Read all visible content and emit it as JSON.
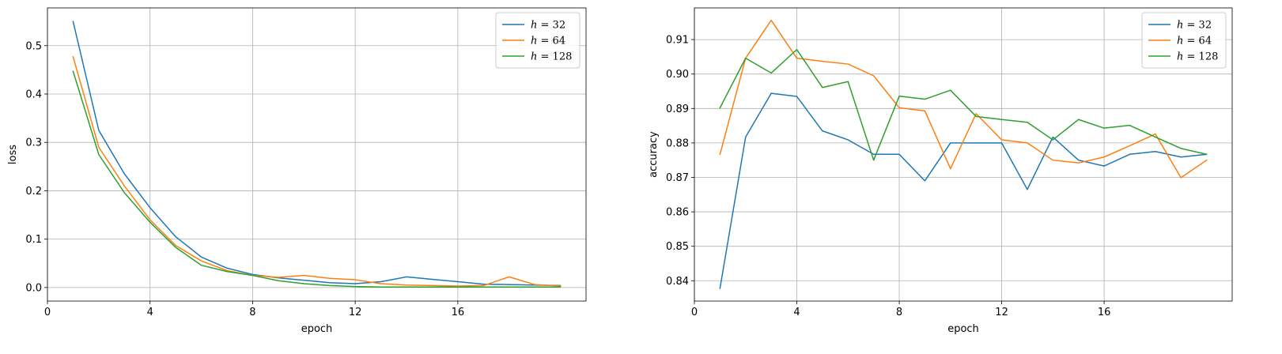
{
  "chart_data": [
    {
      "type": "line",
      "xlabel": "epoch",
      "ylabel": "loss",
      "xlim": [
        0,
        21
      ],
      "ylim": [
        -0.028,
        0.578
      ],
      "xticks": [
        0,
        4,
        8,
        12,
        16
      ],
      "yticks": [
        0.0,
        0.1,
        0.2,
        0.3,
        0.4,
        0.5
      ],
      "ytick_labels": [
        "0.0",
        "0.1",
        "0.2",
        "0.3",
        "0.4",
        "0.5"
      ],
      "grid": true,
      "legend": "top-right",
      "x": [
        1,
        2,
        3,
        4,
        5,
        6,
        7,
        8,
        9,
        10,
        11,
        12,
        13,
        14,
        15,
        16,
        17,
        18,
        19,
        20
      ],
      "series": [
        {
          "var": "h",
          "value": "32",
          "color": "#1f77b4",
          "values": [
            0.55,
            0.325,
            0.235,
            0.165,
            0.105,
            0.063,
            0.04,
            0.027,
            0.02,
            0.015,
            0.01,
            0.008,
            0.012,
            0.022,
            0.017,
            0.012,
            0.007,
            0.006,
            0.005,
            0.004
          ]
        },
        {
          "var": "h",
          "value": "64",
          "color": "#ff7f0e",
          "values": [
            0.477,
            0.29,
            0.21,
            0.14,
            0.087,
            0.055,
            0.035,
            0.025,
            0.021,
            0.025,
            0.019,
            0.016,
            0.008,
            0.005,
            0.004,
            0.003,
            0.004,
            0.022,
            0.006,
            0.003
          ]
        },
        {
          "var": "h",
          "value": "128",
          "color": "#2ca02c",
          "values": [
            0.447,
            0.275,
            0.196,
            0.135,
            0.083,
            0.046,
            0.033,
            0.025,
            0.014,
            0.008,
            0.004,
            0.002,
            0.001,
            0.001,
            0.001,
            0.001,
            0.001,
            0.001,
            0.001,
            0.001
          ]
        }
      ]
    },
    {
      "type": "line",
      "xlabel": "epoch",
      "ylabel": "accuracy",
      "xlim": [
        0,
        21
      ],
      "ylim": [
        0.8341,
        0.9192
      ],
      "xticks": [
        0,
        4,
        8,
        12,
        16
      ],
      "yticks": [
        0.84,
        0.85,
        0.86,
        0.87,
        0.88,
        0.89,
        0.9,
        0.91
      ],
      "ytick_labels": [
        "0.84",
        "0.85",
        "0.86",
        "0.87",
        "0.88",
        "0.89",
        "0.90",
        "0.91"
      ],
      "grid": true,
      "legend": "top-right",
      "x": [
        1,
        2,
        3,
        4,
        5,
        6,
        7,
        8,
        9,
        10,
        11,
        12,
        13,
        14,
        15,
        16,
        17,
        18,
        19,
        20
      ],
      "series": [
        {
          "var": "h",
          "value": "32",
          "color": "#1f77b4",
          "values": [
            0.8378,
            0.8817,
            0.8944,
            0.8935,
            0.8835,
            0.8809,
            0.8767,
            0.8767,
            0.869,
            0.88,
            0.88,
            0.88,
            0.8665,
            0.8817,
            0.875,
            0.8733,
            0.8767,
            0.8775,
            0.8759,
            0.8767
          ]
        },
        {
          "var": "h",
          "value": "64",
          "color": "#ff7f0e",
          "values": [
            0.8767,
            0.9046,
            0.9156,
            0.9046,
            0.9037,
            0.9029,
            0.8995,
            0.8902,
            0.8893,
            0.8725,
            0.8885,
            0.8809,
            0.88,
            0.875,
            0.8742,
            0.8759,
            0.8792,
            0.8826,
            0.8699,
            0.875
          ]
        },
        {
          "var": "h",
          "value": "128",
          "color": "#2ca02c",
          "values": [
            0.8902,
            0.9046,
            0.9003,
            0.9071,
            0.8961,
            0.8978,
            0.875,
            0.8936,
            0.8927,
            0.8953,
            0.8877,
            0.8868,
            0.886,
            0.8809,
            0.8868,
            0.8843,
            0.8851,
            0.8817,
            0.8784,
            0.8767
          ]
        }
      ]
    }
  ]
}
